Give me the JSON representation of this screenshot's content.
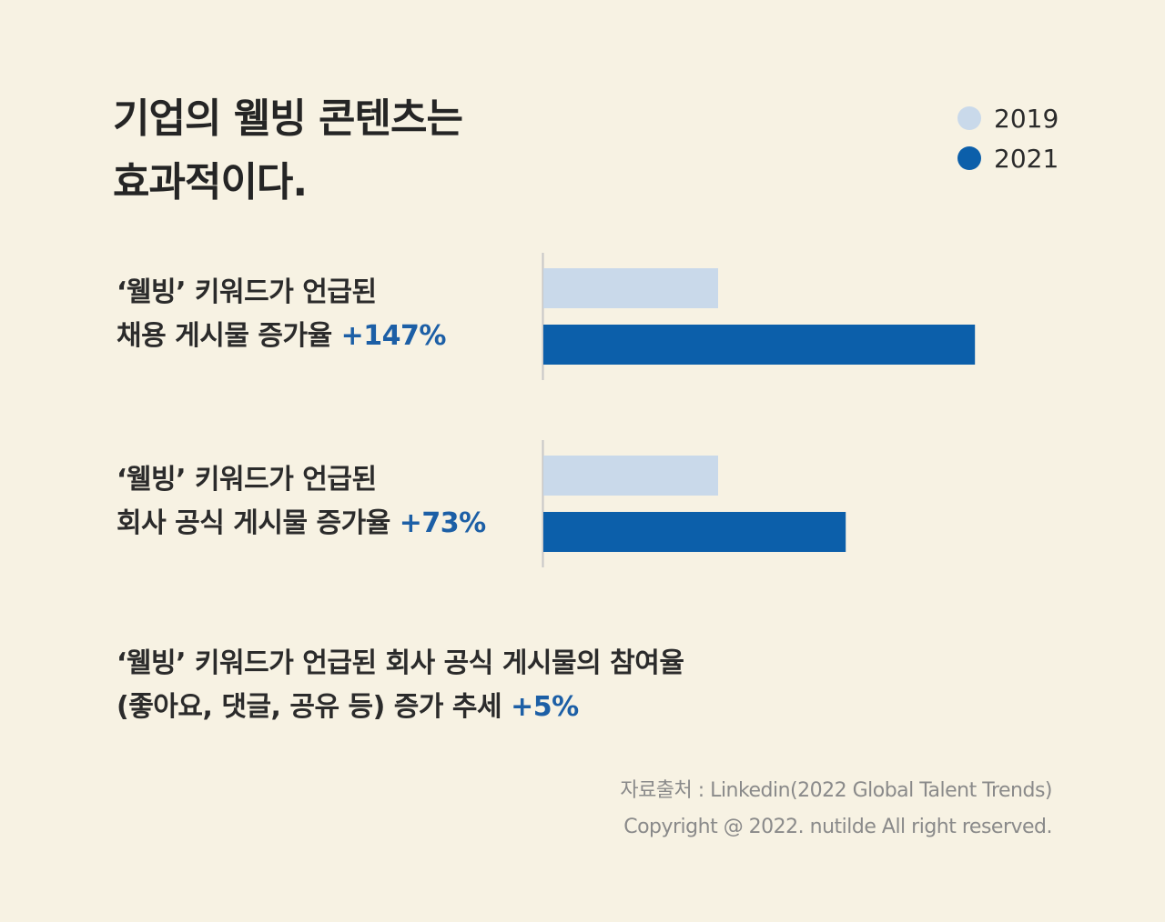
{
  "title": {
    "line1": "기업의 웰빙 콘텐츠는",
    "line2": "효과적이다."
  },
  "legend": [
    {
      "label": "2019",
      "color": "#c9d9ea"
    },
    {
      "label": "2021",
      "color": "#0c5faa"
    }
  ],
  "metrics": [
    {
      "line1": "‘웰빙’ 키워드가 언급된",
      "line2_text": "채용 게시물 증가율 ",
      "value_text": "+147%"
    },
    {
      "line1": "‘웰빙’ 키워드가 언급된",
      "line2_text": "회사 공식 게시물 증가율 ",
      "value_text": "+73%"
    },
    {
      "line1": "‘웰빙’ 키워드가 언급된 회사 공식 게시물의 참여율",
      "line2_text": "(좋아요, 댓글, 공유 등) 증가 추세 ",
      "value_text": "+5%"
    }
  ],
  "chart_data": {
    "type": "bar",
    "orientation": "horizontal",
    "series_names": [
      "2019",
      "2021"
    ],
    "groups": [
      {
        "label": "채용 게시물 증가율",
        "values": [
          100,
          247
        ],
        "change_pct": 147
      },
      {
        "label": "회사 공식 게시물 증가율",
        "values": [
          100,
          173
        ],
        "change_pct": 73
      }
    ],
    "colors": {
      "2019": "#c9d9ea",
      "2021": "#0c5faa"
    },
    "axis": {
      "visible": false
    },
    "grid": false,
    "legend_position": "top-right"
  },
  "source": {
    "line1": "자료출처 : Linkedin(2022 Global Talent Trends)",
    "line2": "Copyright @ 2022. nutilde All right reserved."
  }
}
